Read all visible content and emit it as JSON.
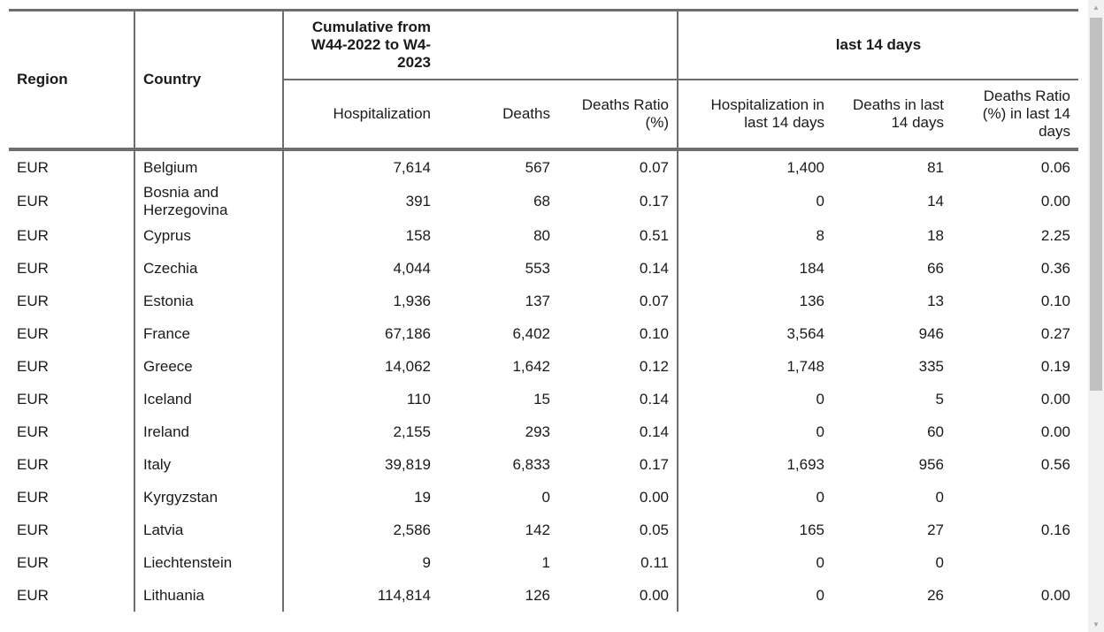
{
  "headers": {
    "region": "Region",
    "country": "Country",
    "cumulative_group": "Cumulative from W44-2022 to W4-2023",
    "last14_group": "last 14 days",
    "hospitalization": "Hospitalization",
    "deaths": "Deaths",
    "deaths_ratio": "Deaths Ratio (%)",
    "hosp_14": "Hospitalization in last 14 days",
    "deaths_14": "Deaths in last 14 days",
    "ratio_14": "Deaths Ratio (%) in last 14 days"
  },
  "rows": [
    {
      "region": "EUR",
      "country": "Belgium",
      "hosp": "7,614",
      "deaths": "567",
      "ratio": "0.07",
      "hosp14": "1,400",
      "deaths14": "81",
      "ratio14": "0.06"
    },
    {
      "region": "EUR",
      "country": "Bosnia and Herzegovina",
      "hosp": "391",
      "deaths": "68",
      "ratio": "0.17",
      "hosp14": "0",
      "deaths14": "14",
      "ratio14": "0.00"
    },
    {
      "region": "EUR",
      "country": "Cyprus",
      "hosp": "158",
      "deaths": "80",
      "ratio": "0.51",
      "hosp14": "8",
      "deaths14": "18",
      "ratio14": "2.25"
    },
    {
      "region": "EUR",
      "country": "Czechia",
      "hosp": "4,044",
      "deaths": "553",
      "ratio": "0.14",
      "hosp14": "184",
      "deaths14": "66",
      "ratio14": "0.36"
    },
    {
      "region": "EUR",
      "country": "Estonia",
      "hosp": "1,936",
      "deaths": "137",
      "ratio": "0.07",
      "hosp14": "136",
      "deaths14": "13",
      "ratio14": "0.10"
    },
    {
      "region": "EUR",
      "country": "France",
      "hosp": "67,186",
      "deaths": "6,402",
      "ratio": "0.10",
      "hosp14": "3,564",
      "deaths14": "946",
      "ratio14": "0.27"
    },
    {
      "region": "EUR",
      "country": "Greece",
      "hosp": "14,062",
      "deaths": "1,642",
      "ratio": "0.12",
      "hosp14": "1,748",
      "deaths14": "335",
      "ratio14": "0.19"
    },
    {
      "region": "EUR",
      "country": "Iceland",
      "hosp": "110",
      "deaths": "15",
      "ratio": "0.14",
      "hosp14": "0",
      "deaths14": "5",
      "ratio14": "0.00"
    },
    {
      "region": "EUR",
      "country": "Ireland",
      "hosp": "2,155",
      "deaths": "293",
      "ratio": "0.14",
      "hosp14": "0",
      "deaths14": "60",
      "ratio14": "0.00"
    },
    {
      "region": "EUR",
      "country": "Italy",
      "hosp": "39,819",
      "deaths": "6,833",
      "ratio": "0.17",
      "hosp14": "1,693",
      "deaths14": "956",
      "ratio14": "0.56"
    },
    {
      "region": "EUR",
      "country": "Kyrgyzstan",
      "hosp": "19",
      "deaths": "0",
      "ratio": "0.00",
      "hosp14": "0",
      "deaths14": "0",
      "ratio14": ""
    },
    {
      "region": "EUR",
      "country": "Latvia",
      "hosp": "2,586",
      "deaths": "142",
      "ratio": "0.05",
      "hosp14": "165",
      "deaths14": "27",
      "ratio14": "0.16"
    },
    {
      "region": "EUR",
      "country": "Liechtenstein",
      "hosp": "9",
      "deaths": "1",
      "ratio": "0.11",
      "hosp14": "0",
      "deaths14": "0",
      "ratio14": ""
    },
    {
      "region": "EUR",
      "country": "Lithuania",
      "hosp": "114,814",
      "deaths": "126",
      "ratio": "0.00",
      "hosp14": "0",
      "deaths14": "26",
      "ratio14": "0.00"
    }
  ],
  "scrollbar": {
    "up_icon": "triangle-up",
    "down_icon": "triangle-down"
  }
}
